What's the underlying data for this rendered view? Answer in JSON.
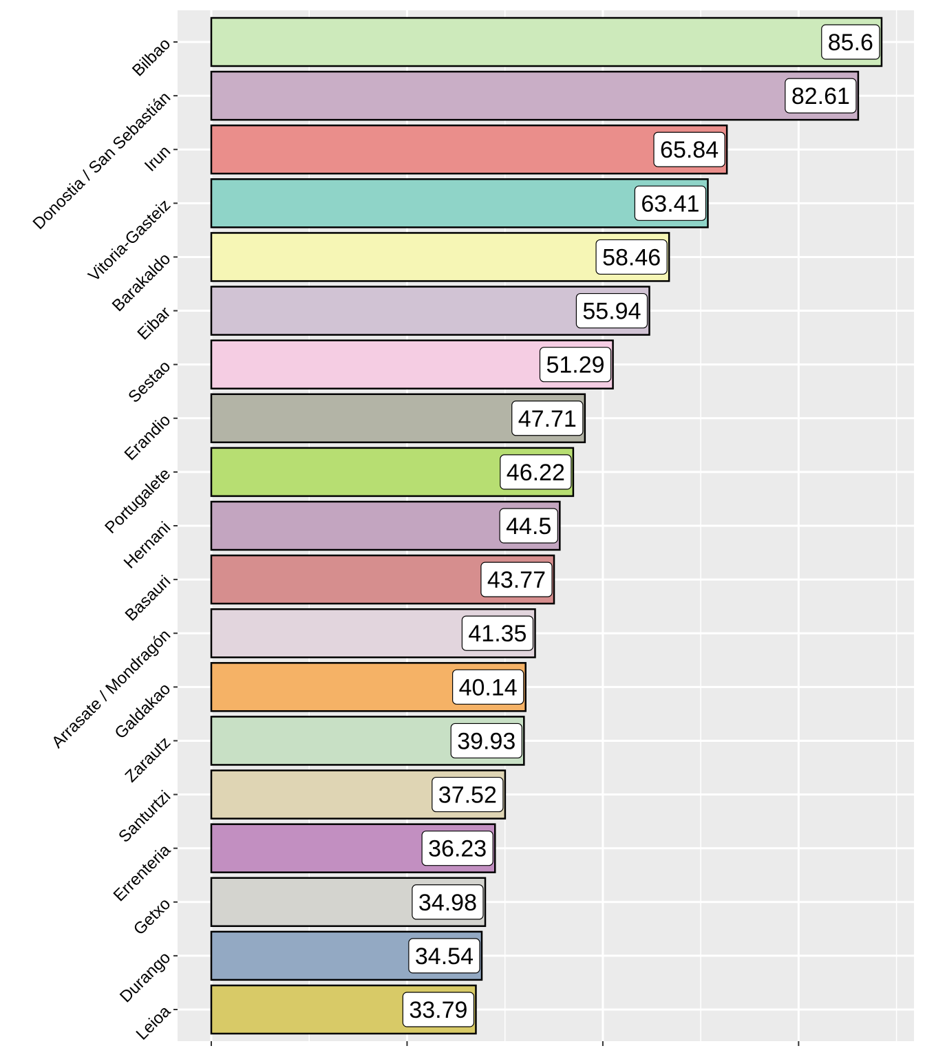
{
  "chart_data": {
    "type": "bar",
    "orientation": "horizontal",
    "title": "",
    "xlabel": "",
    "ylabel": "",
    "xlim": [
      0,
      90
    ],
    "x_major_ticks": [
      0,
      25,
      50,
      75
    ],
    "x_minor_ticks": [
      12.5,
      37.5,
      62.5,
      87.5
    ],
    "x_tick_labels_visible": false,
    "grid": true,
    "legend": "none",
    "categories": [
      "Bilbao",
      "Donostia / San Sebastián",
      "Irun",
      "Vitoria-Gasteiz",
      "Barakaldo",
      "Eibar",
      "Sestao",
      "Erandio",
      "Portugalete",
      "Hernani",
      "Basauri",
      "Arrasate / Mondragón",
      "Galdakao",
      "Zarautz",
      "Santurtzi",
      "Errenteria",
      "Getxo",
      "Durango",
      "Leioa"
    ],
    "values": [
      85.6,
      82.61,
      65.84,
      63.41,
      58.46,
      55.94,
      51.29,
      47.71,
      46.22,
      44.5,
      43.77,
      41.35,
      40.14,
      39.93,
      37.52,
      36.23,
      34.98,
      34.54,
      33.79
    ],
    "data_labels": [
      "85.6",
      "82.61",
      "65.84",
      "63.41",
      "58.46",
      "55.94",
      "51.29",
      "47.71",
      "46.22",
      "44.5",
      "43.77",
      "41.35",
      "40.14",
      "39.93",
      "37.52",
      "36.23",
      "34.98",
      "34.54",
      "33.79"
    ],
    "colors": [
      "#cdeabb",
      "#c9aec6",
      "#ea8e8b",
      "#8fd4c8",
      "#f6f6b5",
      "#d1c3d4",
      "#f5cde3",
      "#b3b4a6",
      "#b7de72",
      "#c3a5c0",
      "#d68e8e",
      "#e2d5dd",
      "#f5b266",
      "#c8e0c5",
      "#dfd5b4",
      "#c28fc1",
      "#d4d4cf",
      "#93a9c3",
      "#d8ca67"
    ]
  },
  "theme": {
    "panel_background": "#ebebeb",
    "grid_color": "#ffffff",
    "bar_outline": "#000000",
    "label_box_fill": "#ffffff",
    "tick_color": "#333333"
  }
}
